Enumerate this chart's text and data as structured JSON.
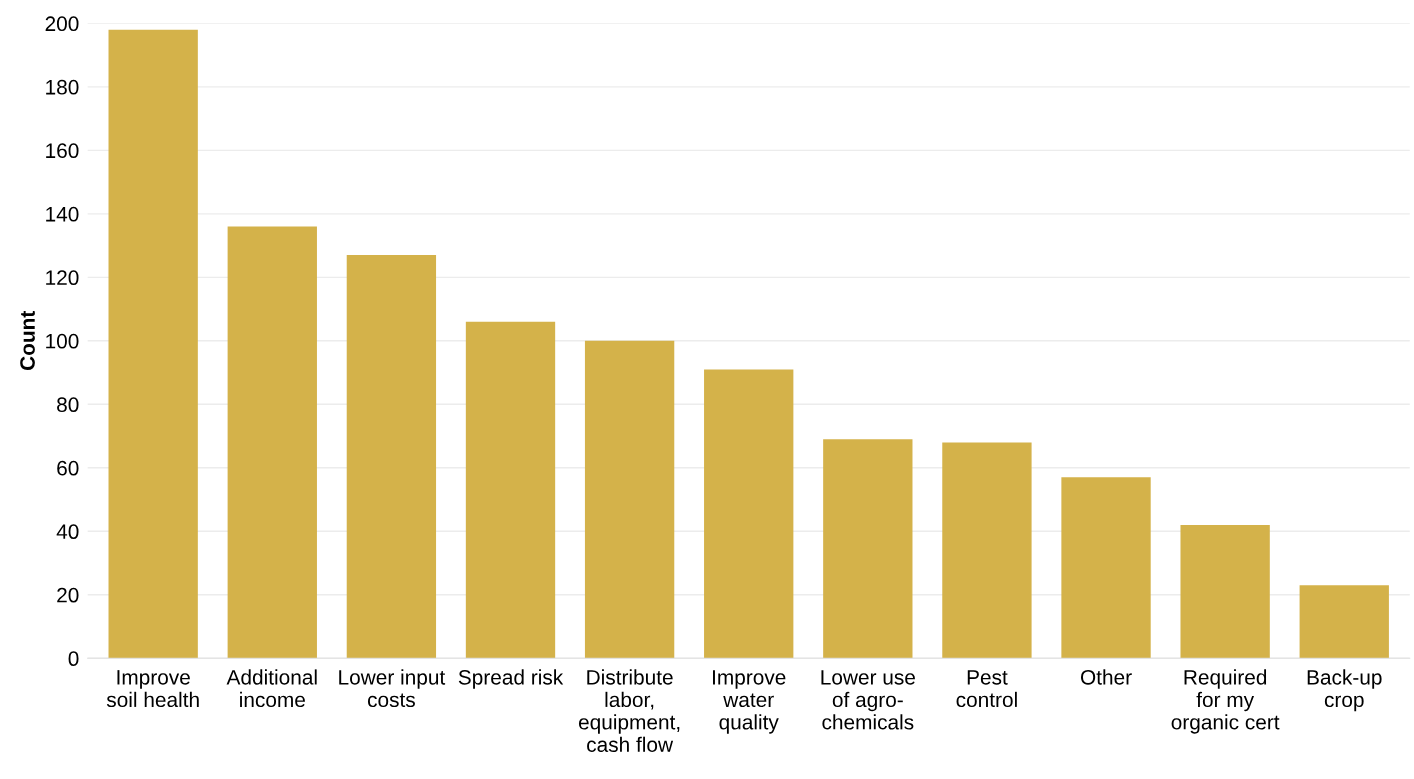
{
  "chart_data": {
    "type": "bar",
    "ylabel": "Count",
    "categories": [
      "Improve\nsoil health",
      "Additional\nincome",
      "Lower input\ncosts",
      "Spread risk",
      "Distribute\nlabor,\nequipment,\ncash flow",
      "Improve\nwater\nquality",
      "Lower use\nof agro-\nchemicals",
      "Pest\ncontrol",
      "Other",
      "Required\nfor my\norganic cert",
      "Back-up\ncrop"
    ],
    "values": [
      198,
      136,
      127,
      106,
      100,
      91,
      69,
      68,
      57,
      42,
      23
    ],
    "color": "#d4b24a",
    "ylim": [
      0,
      200
    ],
    "yticks": [
      0,
      20,
      40,
      60,
      80,
      100,
      120,
      140,
      160,
      180,
      200
    ],
    "grid": "y"
  }
}
